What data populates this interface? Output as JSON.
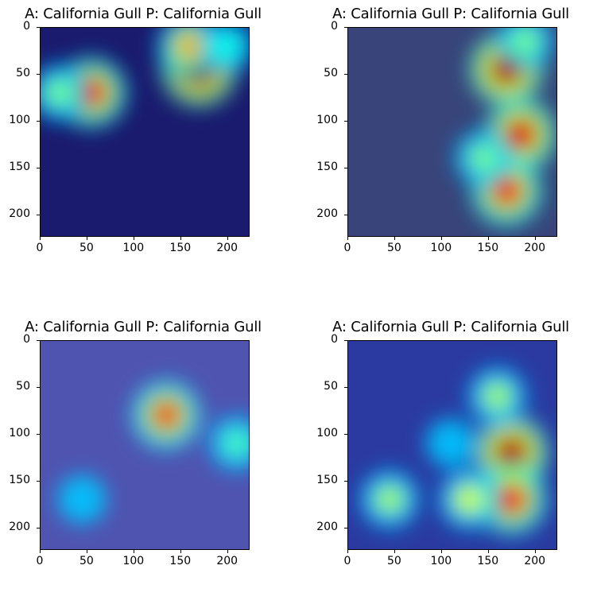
{
  "chart_data": [
    {
      "type": "heatmap",
      "title": "A: California Gull P: California Gull",
      "xticks": [
        0,
        50,
        100,
        150,
        200
      ],
      "yticks": [
        0,
        50,
        100,
        150,
        200
      ],
      "xlim": [
        0,
        224
      ],
      "ylim": [
        224,
        0
      ],
      "hotspots": [
        {
          "x": 170,
          "y": 45,
          "level": 1.0
        },
        {
          "x": 55,
          "y": 70,
          "level": 0.85
        },
        {
          "x": 160,
          "y": 20,
          "level": 0.7
        },
        {
          "x": 20,
          "y": 70,
          "level": 0.5
        },
        {
          "x": 200,
          "y": 20,
          "level": 0.4
        }
      ],
      "background": "#1a1a6e"
    },
    {
      "type": "heatmap",
      "title": "A: California Gull P: California Gull",
      "xticks": [
        0,
        50,
        100,
        150,
        200
      ],
      "yticks": [
        0,
        50,
        100,
        150,
        200
      ],
      "xlim": [
        0,
        224
      ],
      "ylim": [
        224,
        0
      ],
      "hotspots": [
        {
          "x": 170,
          "y": 45,
          "level": 0.95
        },
        {
          "x": 185,
          "y": 115,
          "level": 0.9
        },
        {
          "x": 170,
          "y": 175,
          "level": 0.85
        },
        {
          "x": 145,
          "y": 140,
          "level": 0.5
        },
        {
          "x": 190,
          "y": 15,
          "level": 0.5
        }
      ],
      "background": "#38447a"
    },
    {
      "type": "heatmap",
      "title": "A: California Gull P: California Gull",
      "xticks": [
        0,
        50,
        100,
        150,
        200
      ],
      "yticks": [
        0,
        50,
        100,
        150,
        200
      ],
      "xlim": [
        0,
        224
      ],
      "ylim": [
        224,
        0
      ],
      "hotspots": [
        {
          "x": 135,
          "y": 80,
          "level": 0.8
        },
        {
          "x": 210,
          "y": 110,
          "level": 0.45
        },
        {
          "x": 45,
          "y": 170,
          "level": 0.3
        }
      ],
      "background": "#4f54b0"
    },
    {
      "type": "heatmap",
      "title": "A: California Gull P: California Gull",
      "xticks": [
        0,
        50,
        100,
        150,
        200
      ],
      "yticks": [
        0,
        50,
        100,
        150,
        200
      ],
      "xlim": [
        0,
        224
      ],
      "ylim": [
        224,
        0
      ],
      "hotspots": [
        {
          "x": 175,
          "y": 120,
          "level": 0.95
        },
        {
          "x": 175,
          "y": 170,
          "level": 0.85
        },
        {
          "x": 130,
          "y": 170,
          "level": 0.6
        },
        {
          "x": 45,
          "y": 170,
          "level": 0.55
        },
        {
          "x": 160,
          "y": 60,
          "level": 0.55
        },
        {
          "x": 110,
          "y": 110,
          "level": 0.3
        }
      ],
      "background": "#2a3aa0"
    }
  ]
}
